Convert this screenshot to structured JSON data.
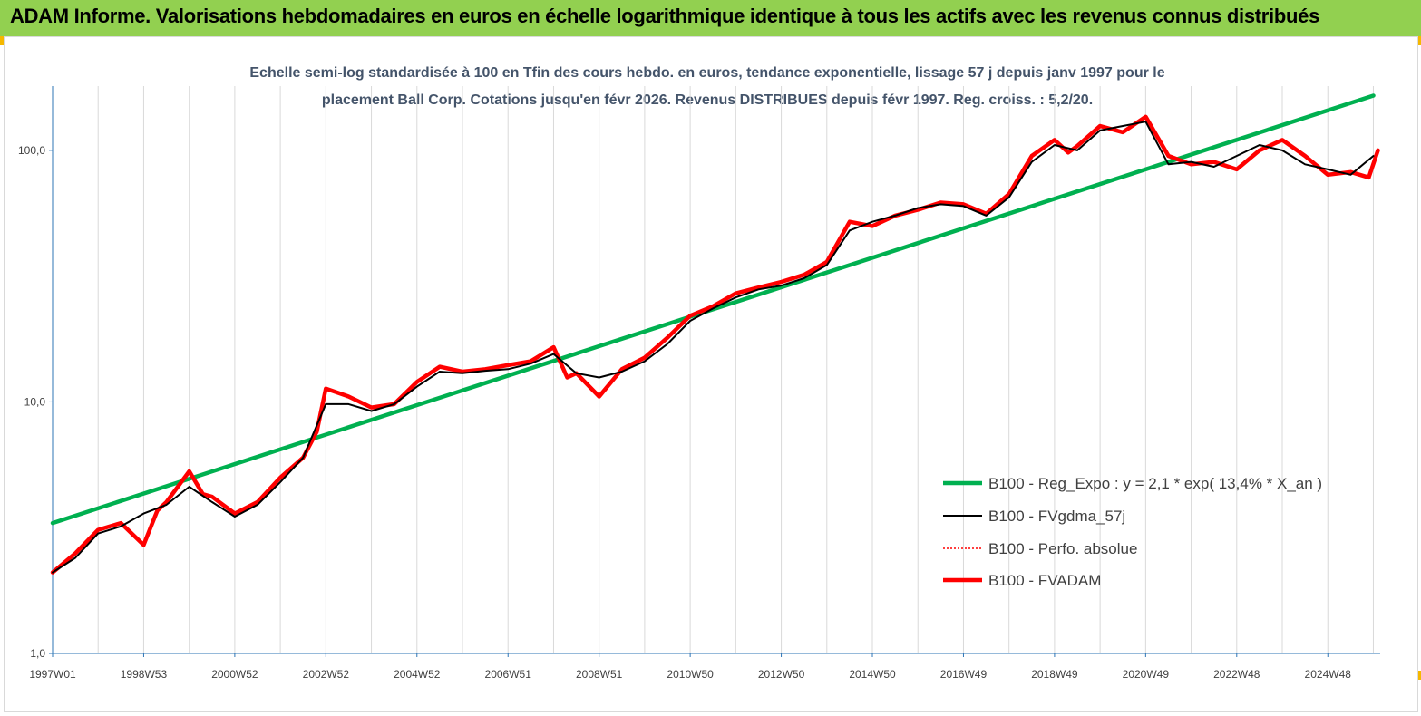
{
  "banner": {
    "title": "ADAM Informe. Valorisations hebdomadaires en euros en échelle logarithmique identique à tous les actifs avec les revenus connus distribués",
    "color": "#92d050"
  },
  "chart_data": {
    "type": "line",
    "title_lines": [
      "Echelle semi-log standardisée à 100 en Tfin des cours hebdo. en euros, tendance exponentielle, lissage 57 j depuis janv 1997 pour le",
      "placement Ball Corp. Cotations jusqu'en févr 2026. Revenus DISTRIBUES depuis févr 1997. Reg. croiss. : 5,2/20."
    ],
    "y_scale": "log",
    "ylim": [
      1,
      180
    ],
    "y_ticks": [
      {
        "value": 1,
        "label": "1,0"
      },
      {
        "value": 10,
        "label": "10,0"
      },
      {
        "value": 100,
        "label": "100,0"
      }
    ],
    "xlim": [
      1997.0,
      2026.15
    ],
    "x_ticks": [
      {
        "value": 1997.0,
        "label": "1997W01"
      },
      {
        "value": 1999.0,
        "label": "1998W53"
      },
      {
        "value": 2001.0,
        "label": "2000W52"
      },
      {
        "value": 2003.0,
        "label": "2002W52"
      },
      {
        "value": 2005.0,
        "label": "2004W52"
      },
      {
        "value": 2007.0,
        "label": "2006W51"
      },
      {
        "value": 2009.0,
        "label": "2008W51"
      },
      {
        "value": 2011.0,
        "label": "2010W50"
      },
      {
        "value": 2013.0,
        "label": "2012W50"
      },
      {
        "value": 2015.0,
        "label": "2014W50"
      },
      {
        "value": 2017.0,
        "label": "2016W49"
      },
      {
        "value": 2019.0,
        "label": "2018W49"
      },
      {
        "value": 2021.0,
        "label": "2020W49"
      },
      {
        "value": 2023.0,
        "label": "2022W48"
      },
      {
        "value": 2025.0,
        "label": "2024W48"
      }
    ],
    "grid": "vertical",
    "legend_position": "bottom-right",
    "series": [
      {
        "name": "B100 - Reg_Expo : y = 2,1 * exp( 13,4% *  X_an )",
        "color": "#00b050",
        "style": "solid-thick",
        "x": [
          1997.0,
          2026.0
        ],
        "y": [
          3.3,
          165
        ]
      },
      {
        "name": "B100 - FVgdma_57j",
        "color": "#000000",
        "style": "solid-thin",
        "x": [
          1997.0,
          1997.5,
          1998.0,
          1998.5,
          1999.0,
          1999.5,
          2000.0,
          2000.5,
          2001.0,
          2001.5,
          2002.0,
          2002.5,
          2003.0,
          2003.5,
          2004.0,
          2004.5,
          2005.0,
          2005.5,
          2006.0,
          2006.5,
          2007.0,
          2007.5,
          2008.0,
          2008.5,
          2009.0,
          2009.5,
          2010.0,
          2010.5,
          2011.0,
          2011.5,
          2012.0,
          2012.5,
          2013.0,
          2013.5,
          2014.0,
          2014.5,
          2015.0,
          2015.5,
          2016.0,
          2016.5,
          2017.0,
          2017.5,
          2018.0,
          2018.5,
          2019.0,
          2019.5,
          2020.0,
          2020.5,
          2021.0,
          2021.5,
          2022.0,
          2022.5,
          2023.0,
          2023.5,
          2024.0,
          2024.5,
          2025.0,
          2025.5,
          2026.0
        ],
        "y": [
          2.1,
          2.4,
          3.0,
          3.2,
          3.6,
          3.9,
          4.6,
          4.0,
          3.5,
          3.9,
          4.8,
          6.0,
          9.8,
          9.8,
          9.2,
          9.8,
          11.5,
          13.2,
          13.0,
          13.3,
          13.5,
          14.2,
          15.5,
          13.0,
          12.5,
          13.2,
          14.5,
          17.0,
          21.0,
          23.5,
          26.0,
          28.0,
          29.0,
          31.0,
          35.0,
          48.0,
          52.0,
          55.0,
          59.0,
          61.0,
          60.0,
          55.0,
          65.0,
          90.0,
          105.0,
          100.0,
          120.0,
          125.0,
          130.0,
          88.0,
          90.0,
          86.0,
          95.0,
          105.0,
          100.0,
          88.0,
          84.0,
          80.0,
          95.0
        ]
      },
      {
        "name": "B100 - Perfo. absolue",
        "color": "#ff0000",
        "style": "dotted",
        "x": [],
        "y": []
      },
      {
        "name": "B100 - FVADAM",
        "color": "#ff0000",
        "style": "solid-thick",
        "x": [
          1997.0,
          1997.5,
          1998.0,
          1998.5,
          1999.0,
          1999.3,
          1999.5,
          2000.0,
          2000.3,
          2000.5,
          2001.0,
          2001.5,
          2002.0,
          2002.5,
          2002.8,
          2003.0,
          2003.5,
          2004.0,
          2004.5,
          2005.0,
          2005.5,
          2006.0,
          2006.5,
          2007.0,
          2007.5,
          2008.0,
          2008.3,
          2008.5,
          2009.0,
          2009.5,
          2010.0,
          2010.5,
          2011.0,
          2011.5,
          2012.0,
          2012.5,
          2013.0,
          2013.5,
          2014.0,
          2014.5,
          2015.0,
          2015.5,
          2016.0,
          2016.5,
          2017.0,
          2017.5,
          2018.0,
          2018.5,
          2019.0,
          2019.3,
          2019.5,
          2020.0,
          2020.5,
          2021.0,
          2021.5,
          2022.0,
          2022.5,
          2023.0,
          2023.5,
          2024.0,
          2024.5,
          2025.0,
          2025.5,
          2025.9,
          2026.1
        ],
        "y": [
          2.1,
          2.5,
          3.1,
          3.3,
          2.7,
          3.7,
          4.0,
          5.3,
          4.3,
          4.2,
          3.6,
          4.0,
          5.0,
          6.0,
          7.6,
          11.3,
          10.5,
          9.5,
          9.8,
          12.0,
          13.8,
          13.2,
          13.5,
          14.0,
          14.5,
          16.5,
          12.5,
          13.0,
          10.5,
          13.5,
          15.0,
          18.0,
          22.0,
          24.0,
          27.0,
          28.5,
          30.0,
          32.0,
          36.0,
          52.0,
          50.0,
          55.0,
          58.0,
          62.0,
          61.0,
          56.0,
          67.0,
          95.0,
          110.0,
          98.0,
          104.0,
          125.0,
          118.0,
          136.0,
          95.0,
          88.0,
          90.0,
          84.0,
          100.0,
          110.0,
          95.0,
          80.0,
          82.0,
          78.0,
          100.0
        ]
      }
    ]
  }
}
